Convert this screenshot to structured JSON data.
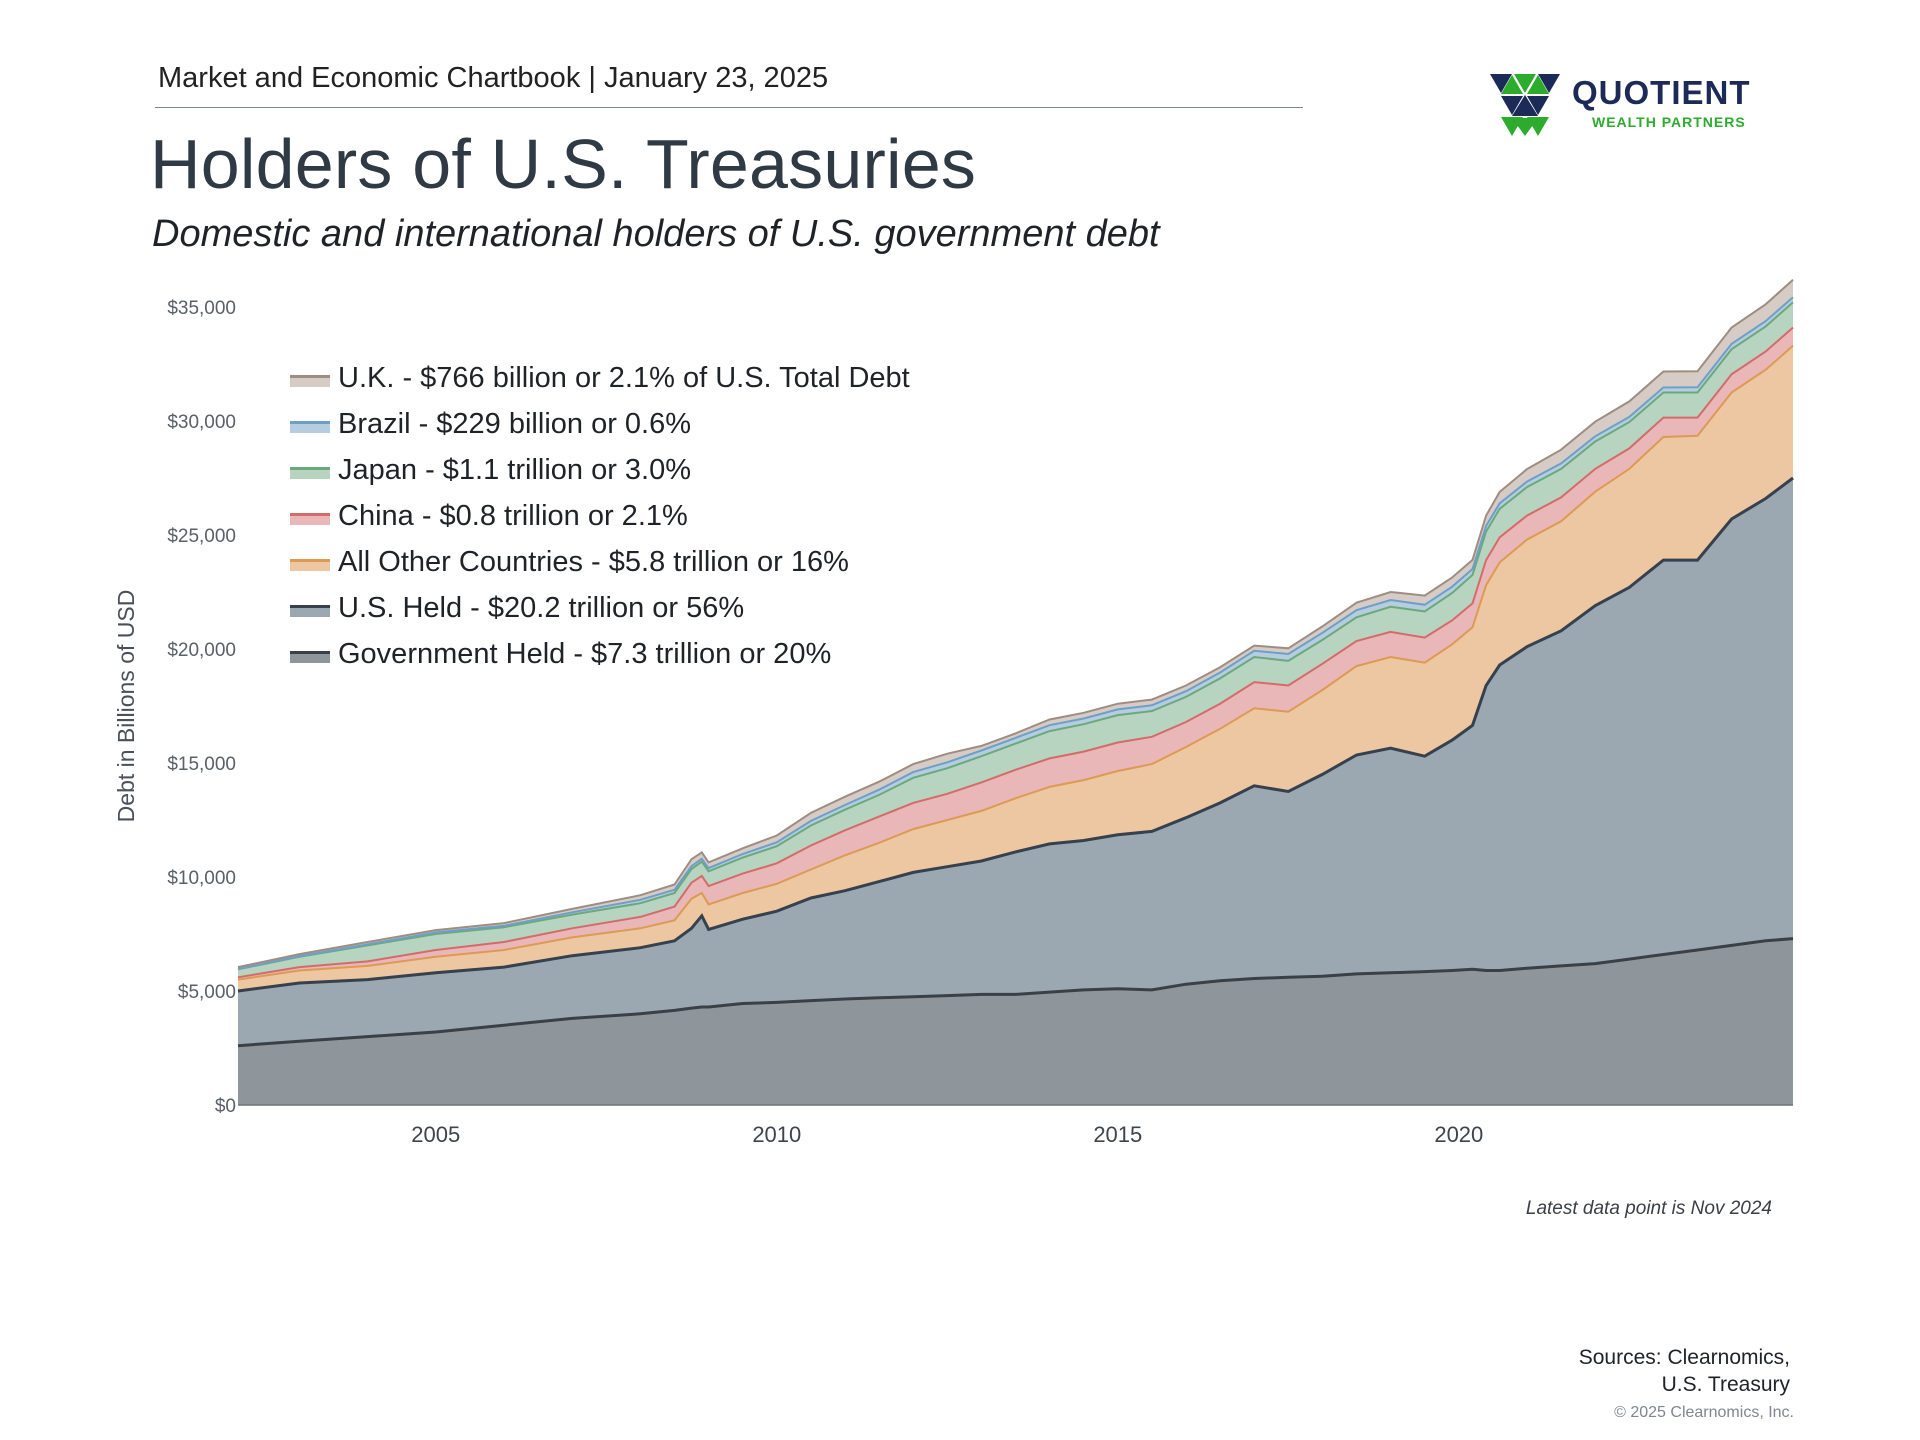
{
  "header": {
    "kicker": "Market and Economic Chartbook | January 23, 2025",
    "title": "Holders of U.S. Treasuries",
    "subtitle": "Domestic and international holders of U.S. government debt"
  },
  "logo": {
    "word": "QUOTIENT",
    "sub": "WEALTH PARTNERS"
  },
  "footer": {
    "note": "Latest data point is Nov 2024",
    "sources_line1": "Sources: Clearnomics,",
    "sources_line2": "U.S. Treasury",
    "copyright": "© 2025 Clearnomics, Inc."
  },
  "colors": {
    "gov": "#8f969b",
    "gov_line": "#3b4046",
    "us": "#9ba7b1",
    "us_line": "#37414d",
    "other": "#edc7a1",
    "other_line": "#dc9a55",
    "china": "#e9b7b8",
    "china_line": "#d46b6b",
    "japan": "#b6d4c0",
    "japan_line": "#6ba97d",
    "brazil": "#b6cde0",
    "brazil_line": "#6e9fc8",
    "uk": "#d7ccc5",
    "uk_line": "#9e8d82"
  },
  "chart_data": {
    "type": "area",
    "stacked": true,
    "ylabel": "Debt in Billions of USD",
    "ylim": [
      0,
      35000
    ],
    "xlim": [
      2002.1,
      2024.9
    ],
    "ytick_values": [
      0,
      5000,
      10000,
      15000,
      20000,
      25000,
      30000,
      35000
    ],
    "ytick_labels": [
      "$0",
      "$5,000",
      "$10,000",
      "$15,000",
      "$20,000",
      "$25,000",
      "$30,000",
      "$35,000"
    ],
    "xtick_values": [
      2005,
      2010,
      2015,
      2020
    ],
    "xtick_labels": [
      "2005",
      "2010",
      "2015",
      "2020"
    ],
    "grid": false,
    "legend_position": "top-left",
    "x": [
      2002.1,
      2003,
      2004,
      2005,
      2006,
      2007,
      2008,
      2008.5,
      2008.75,
      2008.9,
      2009,
      2009.5,
      2010,
      2010.5,
      2011,
      2011.5,
      2012,
      2012.5,
      2013,
      2013.5,
      2014,
      2014.5,
      2015,
      2015.5,
      2016,
      2016.5,
      2017,
      2017.5,
      2018,
      2018.5,
      2019,
      2019.5,
      2019.9,
      2020.2,
      2020.4,
      2020.6,
      2021,
      2021.5,
      2022,
      2022.5,
      2023,
      2023.5,
      2024,
      2024.5,
      2024.9
    ],
    "series": [
      {
        "name": "Government Held - $7.3 trillion or 20%",
        "values": [
          2600,
          2800,
          3000,
          3200,
          3500,
          3800,
          4000,
          4150,
          4250,
          4300,
          4300,
          4450,
          4500,
          4580,
          4650,
          4700,
          4750,
          4800,
          4850,
          4850,
          4950,
          5050,
          5100,
          5050,
          5300,
          5450,
          5550,
          5600,
          5650,
          5750,
          5800,
          5850,
          5900,
          5950,
          5900,
          5900,
          6000,
          6100,
          6200,
          6400,
          6600,
          6800,
          7000,
          7200,
          7300
        ]
      },
      {
        "name": "U.S. Held - $20.2 trillion or 56%",
        "values": [
          2400,
          2550,
          2500,
          2600,
          2550,
          2750,
          2900,
          3050,
          3500,
          4000,
          3400,
          3700,
          4000,
          4500,
          4750,
          5100,
          5450,
          5650,
          5850,
          6250,
          6500,
          6550,
          6750,
          6950,
          7300,
          7800,
          8450,
          8150,
          8850,
          9600,
          9850,
          9450,
          10100,
          10700,
          12500,
          13400,
          14100,
          14700,
          15700,
          16300,
          17300,
          17100,
          18700,
          19400,
          20200
        ]
      },
      {
        "name": "All Other Countries - $5.8 trillion or 16%",
        "values": [
          500,
          550,
          600,
          700,
          750,
          800,
          850,
          900,
          1300,
          1000,
          1100,
          1150,
          1200,
          1250,
          1550,
          1700,
          1900,
          2050,
          2200,
          2350,
          2500,
          2650,
          2800,
          2950,
          3100,
          3250,
          3400,
          3500,
          3700,
          3900,
          4000,
          4100,
          4200,
          4300,
          4400,
          4500,
          4700,
          4800,
          5000,
          5200,
          5400,
          5450,
          5550,
          5650,
          5800
        ]
      },
      {
        "name": "China - $0.8 trillion or 2.1%",
        "values": [
          100,
          150,
          200,
          300,
          350,
          400,
          500,
          600,
          700,
          750,
          800,
          850,
          900,
          1050,
          1100,
          1150,
          1150,
          1150,
          1250,
          1250,
          1250,
          1250,
          1250,
          1200,
          1100,
          1100,
          1150,
          1150,
          1150,
          1100,
          1100,
          1100,
          1050,
          1050,
          1100,
          1100,
          1050,
          1050,
          1000,
          900,
          850,
          800,
          800,
          800,
          800
        ]
      },
      {
        "name": "Japan - $1.1 trillion or 3.0%",
        "values": [
          350,
          450,
          700,
          700,
          650,
          600,
          600,
          600,
          600,
          620,
          650,
          700,
          750,
          880,
          900,
          950,
          1100,
          1120,
          1150,
          1150,
          1200,
          1200,
          1200,
          1130,
          1100,
          1110,
          1100,
          1080,
          1050,
          1040,
          1100,
          1150,
          1200,
          1250,
          1250,
          1250,
          1250,
          1250,
          1200,
          1150,
          1100,
          1100,
          1100,
          1100,
          1100
        ]
      },
      {
        "name": "Brazil - $229 billion or 0.6%",
        "values": [
          20,
          30,
          50,
          70,
          60,
          100,
          150,
          140,
          130,
          130,
          140,
          160,
          170,
          200,
          210,
          230,
          250,
          260,
          250,
          250,
          260,
          250,
          250,
          250,
          250,
          260,
          270,
          300,
          310,
          310,
          300,
          290,
          280,
          260,
          250,
          240,
          240,
          240,
          230,
          230,
          220,
          230,
          230,
          230,
          229
        ]
      },
      {
        "name": "U.K. - $766 billion or 2.1% of U.S. Total Debt",
        "values": [
          80,
          90,
          100,
          100,
          120,
          150,
          200,
          230,
          300,
          280,
          250,
          250,
          300,
          350,
          360,
          350,
          350,
          380,
          200,
          200,
          250,
          250,
          250,
          250,
          250,
          230,
          230,
          250,
          280,
          330,
          350,
          400,
          400,
          400,
          450,
          500,
          550,
          600,
          640,
          680,
          700,
          700,
          720,
          740,
          766
        ]
      }
    ]
  }
}
